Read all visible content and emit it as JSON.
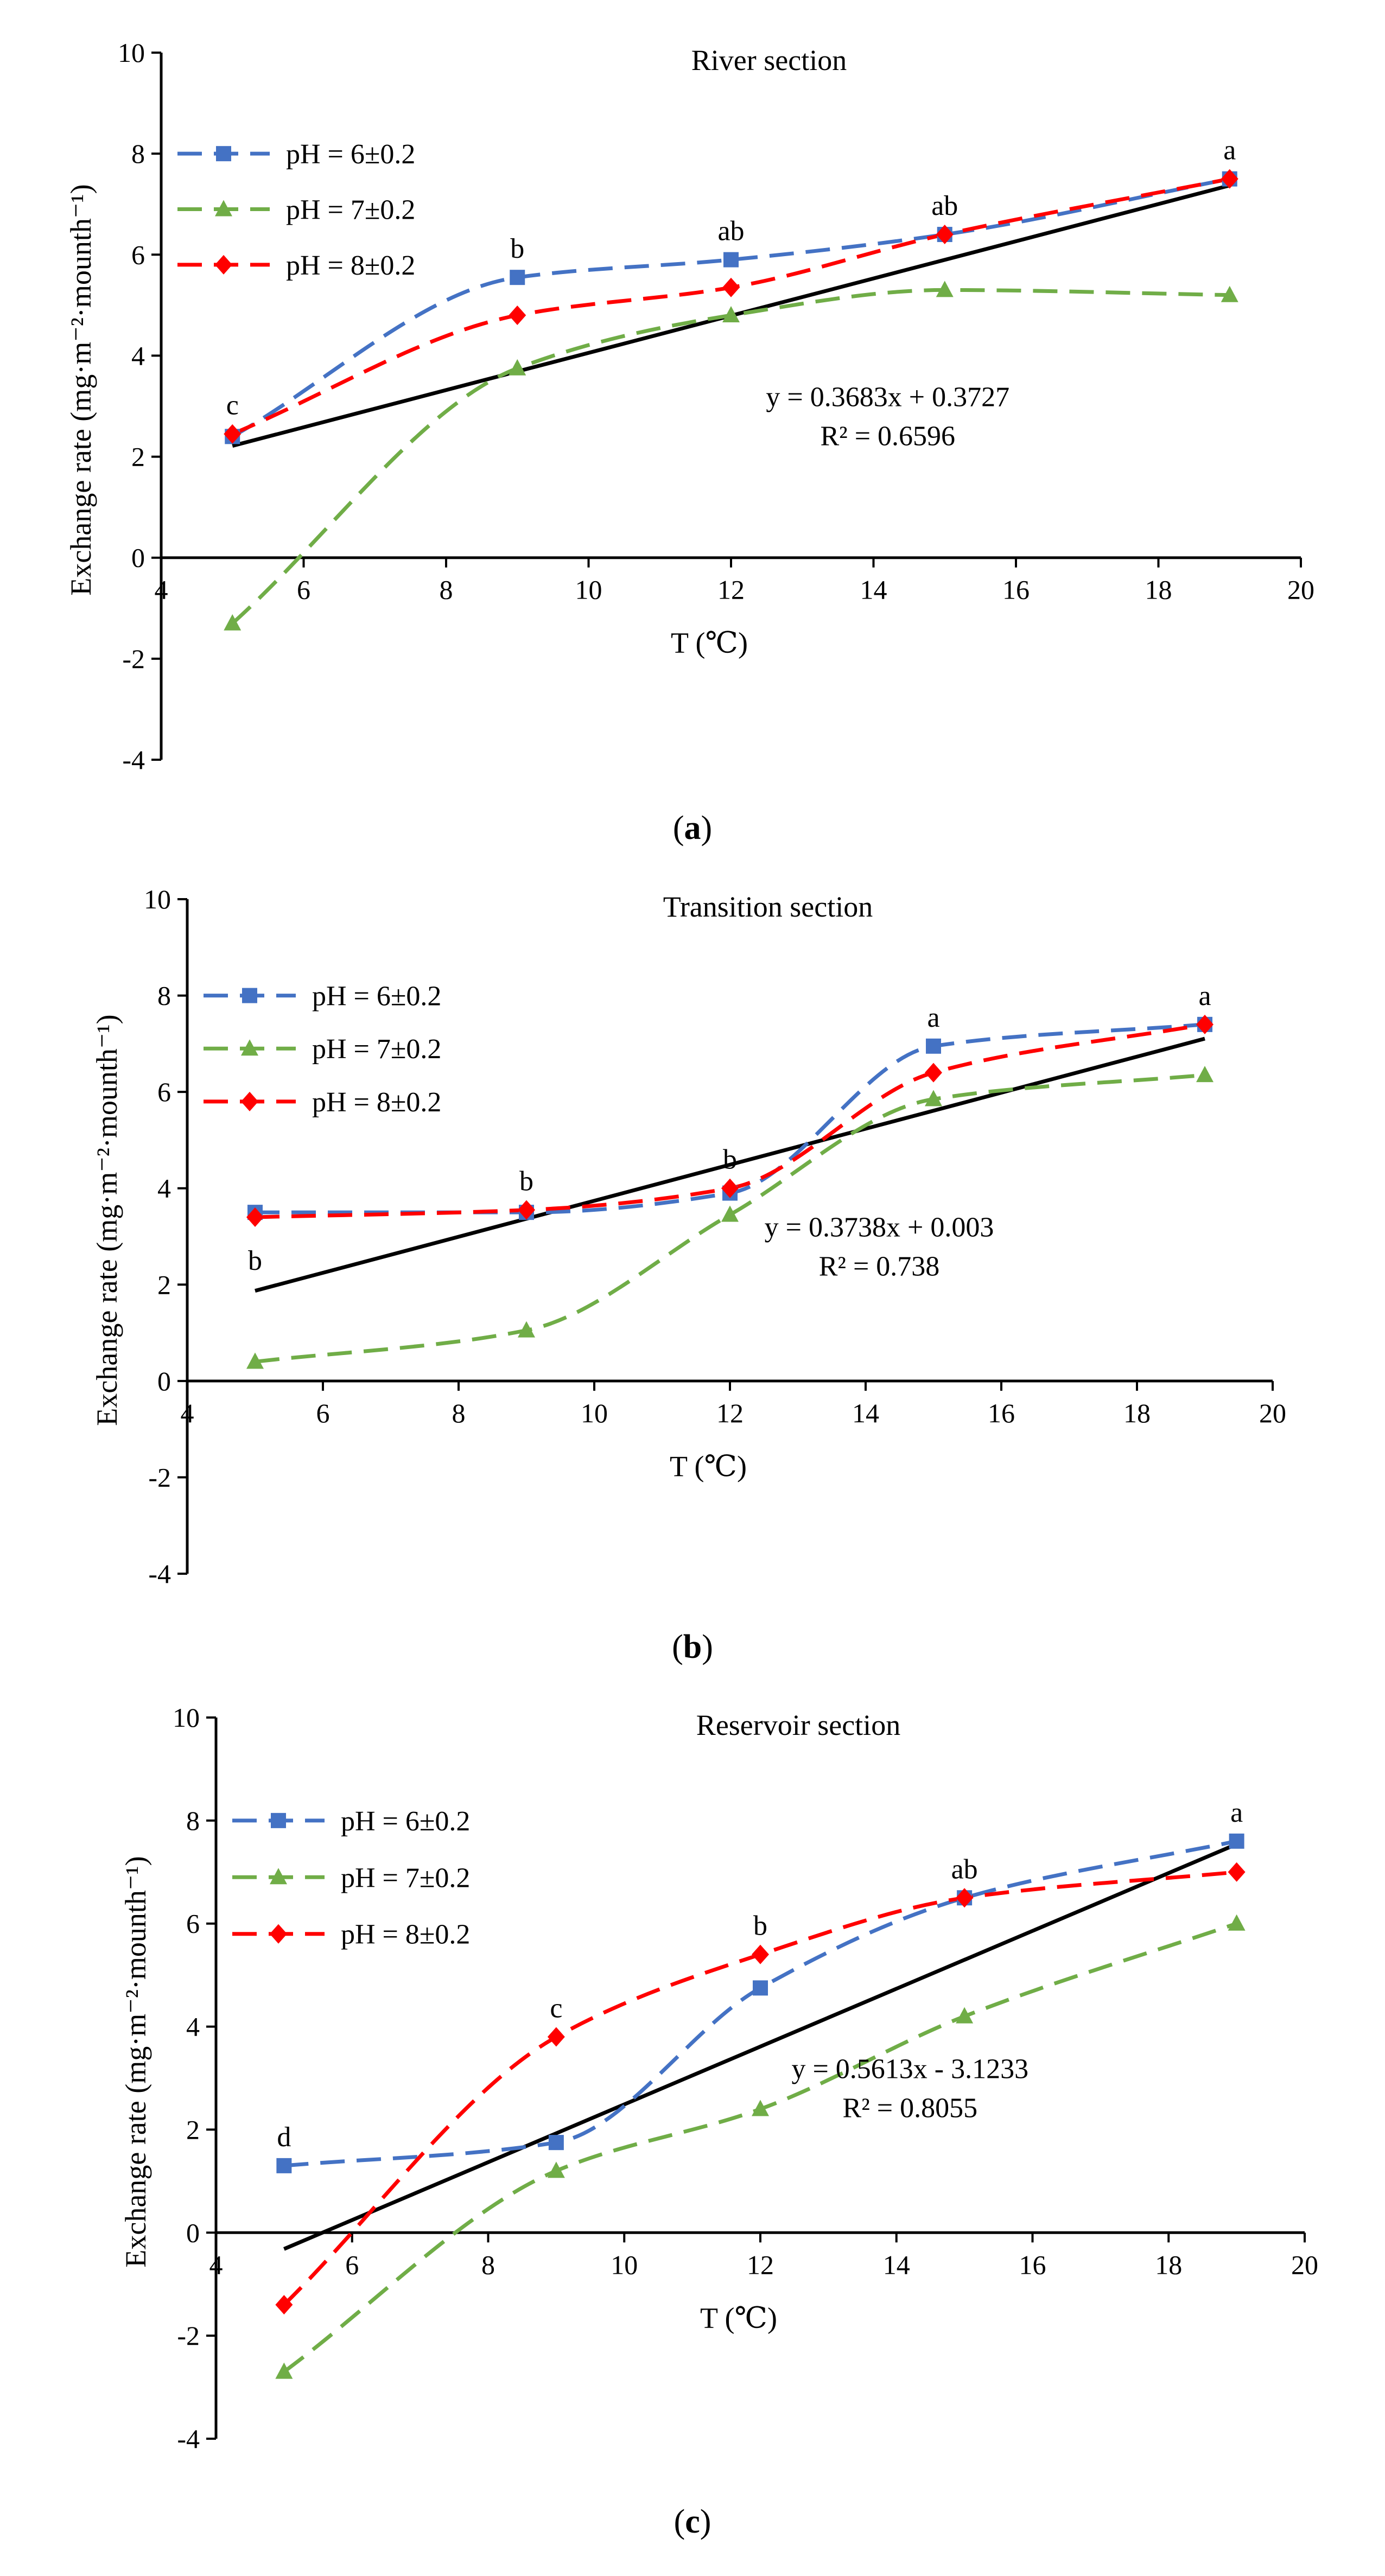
{
  "figure": {
    "panels": [
      {
        "caption_letter": "a",
        "caption_open": "(",
        "caption_close": ")"
      },
      {
        "caption_letter": "b",
        "caption_open": "(",
        "caption_close": ")"
      },
      {
        "caption_letter": "c",
        "caption_open": "(",
        "caption_close": ")"
      }
    ]
  },
  "colors": {
    "ph6": "#4472C4",
    "ph7": "#70AD47",
    "ph8": "#FF0000",
    "trend": "#000000",
    "axis": "#000000"
  },
  "chart_data": [
    {
      "type": "line",
      "title": "River section",
      "xlabel": "T (℃)",
      "ylabel": "Exchange rate (mg·m⁻²·mounth⁻¹)",
      "x": [
        5,
        9,
        12,
        15,
        19
      ],
      "xlim": [
        4,
        20
      ],
      "ylim": [
        -4,
        10
      ],
      "xticks": [
        4,
        6,
        8,
        10,
        12,
        14,
        16,
        18,
        20
      ],
      "yticks": [
        -4,
        -2,
        0,
        2,
        4,
        6,
        8,
        10
      ],
      "series": [
        {
          "name": "pH = 6±0.2",
          "values": [
            2.4,
            5.55,
            5.9,
            6.4,
            7.5
          ],
          "marker": "square",
          "color_key": "ph6"
        },
        {
          "name": "pH = 7±0.2",
          "values": [
            -1.3,
            3.75,
            4.8,
            5.3,
            5.2
          ],
          "marker": "triangle",
          "color_key": "ph7"
        },
        {
          "name": "pH = 8±0.2",
          "values": [
            2.45,
            4.8,
            5.35,
            6.4,
            7.5
          ],
          "marker": "diamond",
          "color_key": "ph8"
        }
      ],
      "trendline": {
        "slope": 0.3683,
        "intercept": 0.3727,
        "x_range": [
          5,
          19
        ],
        "equation": "y = 0.3683x + 0.3727",
        "r2": "R² = 0.6596"
      },
      "letters": [
        {
          "x": 5,
          "y": 2.45,
          "text": "c"
        },
        {
          "x": 9,
          "y": 5.55,
          "text": "b"
        },
        {
          "x": 12,
          "y": 5.9,
          "text": "ab"
        },
        {
          "x": 15,
          "y": 6.4,
          "text": "ab"
        },
        {
          "x": 19,
          "y": 7.5,
          "text": "a"
        }
      ]
    },
    {
      "type": "line",
      "title": "Transition section",
      "xlabel": "T (℃)",
      "ylabel": "Exchange rate (mg·m⁻²·mounth⁻¹)",
      "x": [
        5,
        9,
        12,
        15,
        19
      ],
      "xlim": [
        4,
        20
      ],
      "ylim": [
        -4,
        10
      ],
      "xticks": [
        4,
        6,
        8,
        10,
        12,
        14,
        16,
        18,
        20
      ],
      "yticks": [
        -4,
        -2,
        0,
        2,
        4,
        6,
        8,
        10
      ],
      "series": [
        {
          "name": "pH = 6±0.2",
          "values": [
            3.5,
            3.5,
            3.9,
            6.95,
            7.4
          ],
          "marker": "square",
          "color_key": "ph6"
        },
        {
          "name": "pH = 7±0.2",
          "values": [
            0.4,
            1.05,
            3.45,
            5.85,
            6.35
          ],
          "marker": "triangle",
          "color_key": "ph7"
        },
        {
          "name": "pH = 8±0.2",
          "values": [
            3.4,
            3.55,
            4.0,
            6.4,
            7.4
          ],
          "marker": "diamond",
          "color_key": "ph8"
        }
      ],
      "trendline": {
        "slope": 0.3738,
        "intercept": 0.003,
        "x_range": [
          5,
          19
        ],
        "equation": "y = 0.3738x + 0.003",
        "r2": "R² = 0.738"
      },
      "letters": [
        {
          "x": 5,
          "y": 1.9,
          "text": "b"
        },
        {
          "x": 9,
          "y": 3.55,
          "text": "b"
        },
        {
          "x": 12,
          "y": 4.0,
          "text": "b"
        },
        {
          "x": 15,
          "y": 6.95,
          "text": "a"
        },
        {
          "x": 19,
          "y": 7.4,
          "text": "a"
        }
      ]
    },
    {
      "type": "line",
      "title": "Reservoir section",
      "xlabel": "T (℃)",
      "ylabel": "Exchange rate (mg·m⁻²·mounth⁻¹)",
      "x": [
        5,
        9,
        12,
        15,
        19
      ],
      "xlim": [
        4,
        20
      ],
      "ylim": [
        -4,
        10
      ],
      "xticks": [
        4,
        6,
        8,
        10,
        12,
        14,
        16,
        18,
        20
      ],
      "yticks": [
        -4,
        -2,
        0,
        2,
        4,
        6,
        8,
        10
      ],
      "series": [
        {
          "name": "pH = 6±0.2",
          "values": [
            1.3,
            1.75,
            4.75,
            6.5,
            7.6
          ],
          "marker": "square",
          "color_key": "ph6"
        },
        {
          "name": "pH = 7±0.2",
          "values": [
            -2.7,
            1.2,
            2.4,
            4.2,
            6.0
          ],
          "marker": "triangle",
          "color_key": "ph7"
        },
        {
          "name": "pH = 8±0.2",
          "values": [
            -1.4,
            3.8,
            5.4,
            6.5,
            7.0
          ],
          "marker": "diamond",
          "color_key": "ph8"
        }
      ],
      "trendline": {
        "slope": 0.5613,
        "intercept": -3.1233,
        "x_range": [
          5,
          19
        ],
        "equation": "y = 0.5613x - 3.1233",
        "r2": "R² = 0.8055"
      },
      "letters": [
        {
          "x": 5,
          "y": 1.3,
          "text": "d"
        },
        {
          "x": 9,
          "y": 3.8,
          "text": "c"
        },
        {
          "x": 12,
          "y": 5.4,
          "text": "b"
        },
        {
          "x": 15,
          "y": 6.5,
          "text": "ab"
        },
        {
          "x": 19,
          "y": 7.6,
          "text": "a"
        }
      ]
    }
  ]
}
